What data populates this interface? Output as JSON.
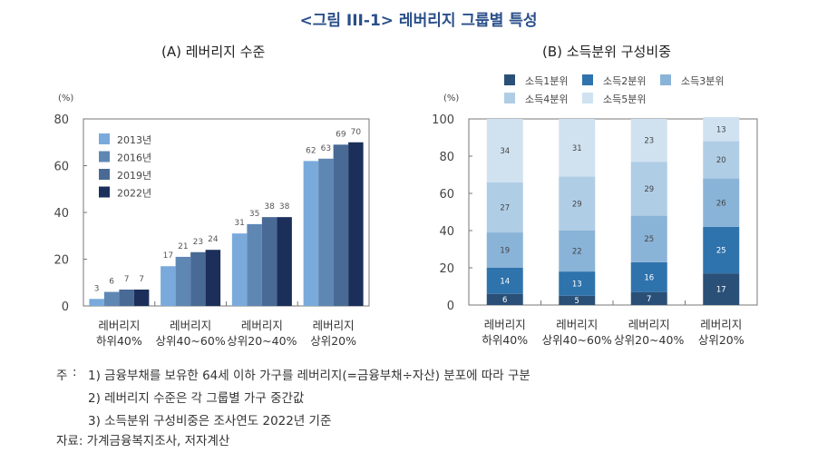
{
  "title": "<그림 III-1> 레버리지 그룹별 특성",
  "chart_data": [
    {
      "type": "bar",
      "title": "(A) 레버리지 수준",
      "ylabel": "(%)",
      "ylim": [
        0,
        80
      ],
      "yticks": [
        0,
        20,
        40,
        60,
        80
      ],
      "categories": [
        "레버리지\n하위40%",
        "레버리지\n상위40~60%",
        "레버리지\n상위20~40%",
        "레버리지\n상위20%"
      ],
      "legend": "top-left",
      "series": [
        {
          "name": "2013년",
          "color": "#7aaadb",
          "values": [
            3,
            17,
            31,
            62
          ]
        },
        {
          "name": "2016년",
          "color": "#5f87b4",
          "values": [
            6,
            21,
            35,
            63
          ]
        },
        {
          "name": "2019년",
          "color": "#486a95",
          "values": [
            7,
            23,
            38,
            69
          ]
        },
        {
          "name": "2022년",
          "color": "#1b2f5a",
          "values": [
            7,
            24,
            38,
            70
          ]
        }
      ]
    },
    {
      "type": "bar",
      "stacked": true,
      "title": "(B) 소득분위 구성비중",
      "ylabel": "(%)",
      "ylim": [
        0,
        100
      ],
      "yticks": [
        0,
        20,
        40,
        60,
        80,
        100
      ],
      "categories": [
        "레버리지\n하위40%",
        "레버리지\n상위40~60%",
        "레버리지\n상위20~40%",
        "레버리지\n상위20%"
      ],
      "legend": "top",
      "series": [
        {
          "name": "소득1분위",
          "color": "#2a5078",
          "values": [
            6,
            5,
            7,
            17
          ]
        },
        {
          "name": "소득2분위",
          "color": "#2f73ac",
          "values": [
            14,
            13,
            16,
            25
          ]
        },
        {
          "name": "소득3분위",
          "color": "#8ab3d8",
          "values": [
            19,
            22,
            25,
            26
          ]
        },
        {
          "name": "소득4분위",
          "color": "#b0cde6",
          "values": [
            27,
            29,
            29,
            20
          ]
        },
        {
          "name": "소득5분위",
          "color": "#d0e2f0",
          "values": [
            34,
            31,
            23,
            13
          ]
        }
      ]
    }
  ],
  "notes": {
    "label": "주",
    "lines": [
      "1) 금융부채를 보유한 64세 이하 가구를 레버리지(=금융부채÷자산) 분포에 따라 구분",
      "2) 레버리지 수준은 각 그룹별 가구 중간값",
      "3) 소득분위 구성비중은 조사연도 2022년 기준"
    ],
    "source": "자료: 가계금융복지조사, 저자계산"
  }
}
